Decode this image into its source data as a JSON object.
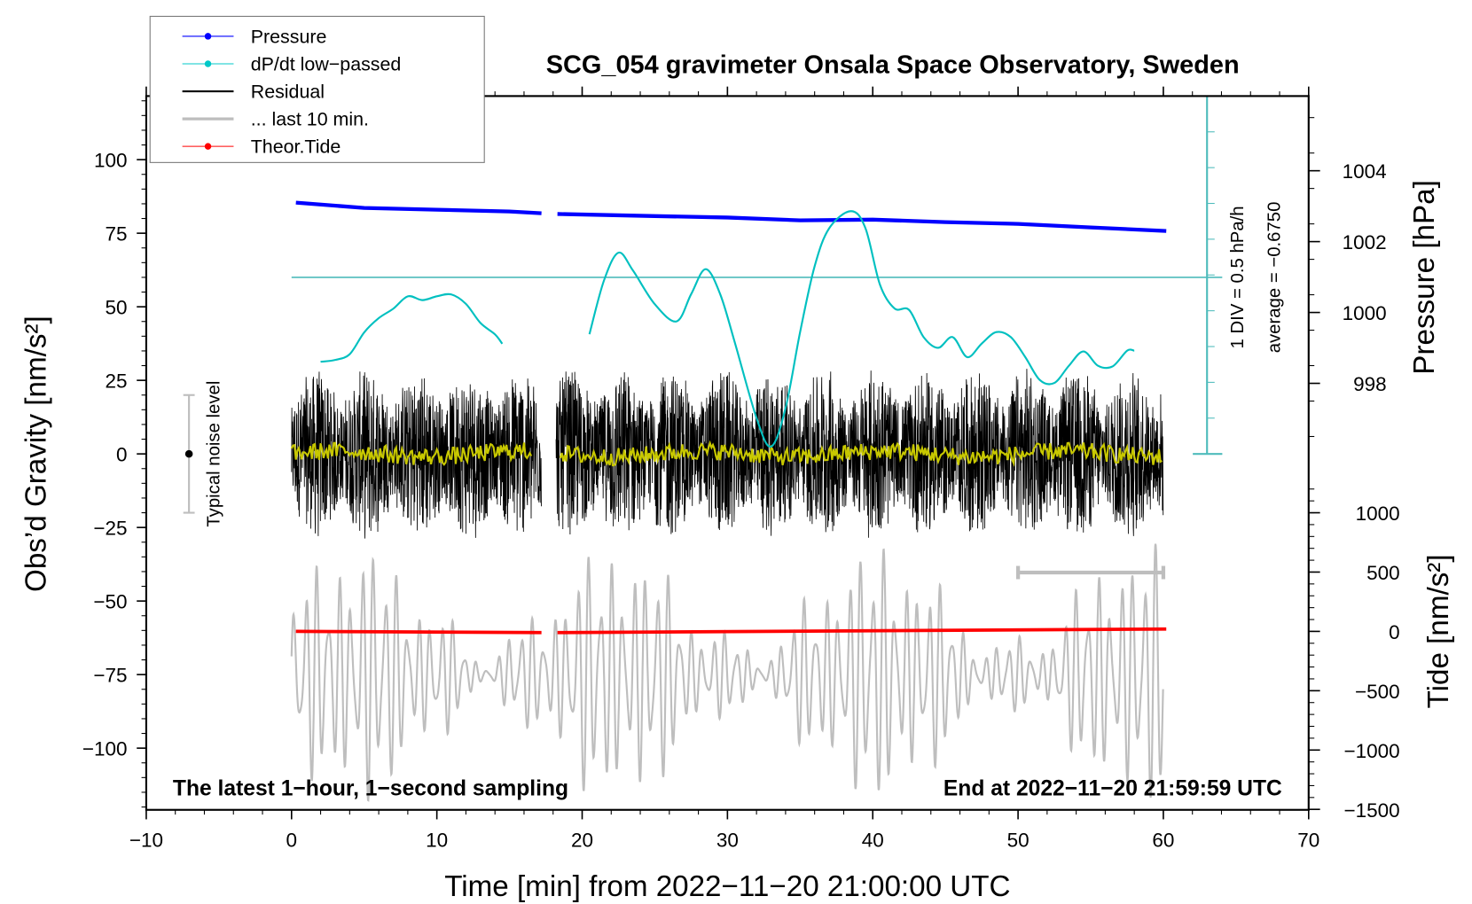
{
  "chart_data": {
    "type": "line",
    "title": "SCG_054 gravimeter Onsala Space Observatory, Sweden",
    "xlabel": "Time [min] from 2022−11−20 21:00:00 UTC",
    "ylabel_left": "Obs’d Gravity [nm/s²]",
    "ylabel_right_pressure": "Pressure [hPa]",
    "ylabel_right_tide": "Tide [nm/s²]",
    "xlim": [
      -10,
      70
    ],
    "ylim_left": [
      -121,
      121
    ],
    "x_ticks": [
      "−10",
      "0",
      "10",
      "20",
      "30",
      "40",
      "50",
      "60",
      "70"
    ],
    "x_tick_values": [
      -10,
      0,
      10,
      20,
      30,
      40,
      50,
      60,
      70
    ],
    "y_ticks_left": [
      "100",
      "75",
      "50",
      "25",
      "0",
      "−25",
      "−50",
      "−75",
      "−100"
    ],
    "y_tick_values_left": [
      100,
      75,
      50,
      25,
      0,
      -25,
      -50,
      -75,
      -100
    ],
    "pressure_ticks": [
      "1004",
      "1002",
      "1000",
      "998"
    ],
    "pressure_tick_values": [
      1004,
      1002,
      1000,
      998
    ],
    "tide_ticks": [
      "1000",
      "500",
      "0",
      "−500",
      "−1000",
      "−1500"
    ],
    "tide_tick_values": [
      1000,
      500,
      0,
      -500,
      -1000,
      -1500
    ],
    "legend": {
      "placement": "top-left",
      "entries": [
        {
          "label": "Pressure",
          "color": "#0000ff",
          "marker": true
        },
        {
          "label": "dP/dt low−passed",
          "color": "#00c8c8",
          "marker": true
        },
        {
          "label": "Residual",
          "color": "#000000",
          "marker": false
        },
        {
          "label": "... last 10 min.",
          "color": "#bebebe",
          "marker": false
        },
        {
          "label": "Theor.Tide",
          "color": "#ff0000",
          "marker": true
        }
      ]
    },
    "annotations": {
      "bottom_left": "The latest 1−hour, 1−second sampling",
      "bottom_right": "End at 2022−11−20 21:59:59 UTC",
      "noise_label": "Typical noise level",
      "div_label": "1 DIV = 0.5 hPa/h",
      "average_label": "average = −0.6750"
    },
    "dpdt_average": -0.675,
    "dpdt_div": 0.5,
    "typical_noise_level": 20,
    "data_gap_min": [
      17.2,
      18.2
    ],
    "series": {
      "pressure_hPa": {
        "x": [
          0.3,
          5,
          10,
          15,
          17.2,
          18.3,
          25,
          30,
          35,
          40,
          45,
          50,
          55,
          60.2
        ],
        "y": [
          1003.1,
          1002.95,
          1002.9,
          1002.85,
          1002.8,
          1002.78,
          1002.72,
          1002.68,
          1002.6,
          1002.62,
          1002.55,
          1002.5,
          1002.4,
          1002.3
        ]
      },
      "dpdt_hPa_per_h": [
        {
          "x": [
            2,
            3,
            4,
            5,
            6,
            7,
            8,
            9,
            10,
            11,
            12,
            13,
            14,
            14.5
          ],
          "y": [
            -1.855,
            -1.829,
            -1.749,
            -1.444,
            -1.245,
            -1.113,
            -0.94,
            -0.993,
            -0.94,
            -0.914,
            -1.046,
            -1.312,
            -1.471,
            -1.603
          ]
        },
        {
          "x": [
            20.5,
            21.5,
            22.5,
            23.5,
            25,
            26.5,
            27.5,
            28.5,
            29.5,
            30.5,
            32,
            33,
            34,
            35,
            36,
            37,
            38.5,
            39.5,
            40.5,
            41.5,
            42.5,
            43.5,
            44.5,
            45.5,
            46.5,
            47.5,
            48.5,
            49.5,
            50.5,
            51.5,
            52.5,
            53.5,
            54.5,
            55.5,
            56.5,
            57.5,
            58
          ],
          "y": [
            -1.47,
            -0.72,
            -0.33,
            -0.58,
            -1.05,
            -1.29,
            -0.91,
            -0.56,
            -0.91,
            -1.58,
            -2.64,
            -3.04,
            -2.5,
            -1.44,
            -0.52,
            0.01,
            0.25,
            0.01,
            -0.78,
            -1.11,
            -1.13,
            -1.51,
            -1.66,
            -1.51,
            -1.79,
            -1.6,
            -1.44,
            -1.51,
            -1.79,
            -2.11,
            -2.15,
            -1.91,
            -1.71,
            -1.91,
            -1.92,
            -1.7,
            -1.7
          ]
        }
      ],
      "residual": {
        "segments": [
          [
            0,
            17.2
          ],
          [
            18.2,
            60
          ]
        ],
        "amplitude_nm_s2": 25,
        "offset": 0
      },
      "residual_smoothed": {
        "segments": [
          [
            0,
            16.5
          ],
          [
            18.5,
            60
          ]
        ],
        "amplitude_nm_s2": 3,
        "color": "#c8c800"
      },
      "last_10_min": {
        "x_range": [
          0,
          60
        ],
        "offset": -75,
        "amplitude_nm_s2": 35,
        "range_bar_min": [
          50,
          60
        ]
      },
      "theor_tide_nm_s2": {
        "x": [
          0.3,
          17.2,
          18.3,
          60.2
        ],
        "y": [
          0,
          -10,
          -10,
          20
        ]
      }
    }
  }
}
